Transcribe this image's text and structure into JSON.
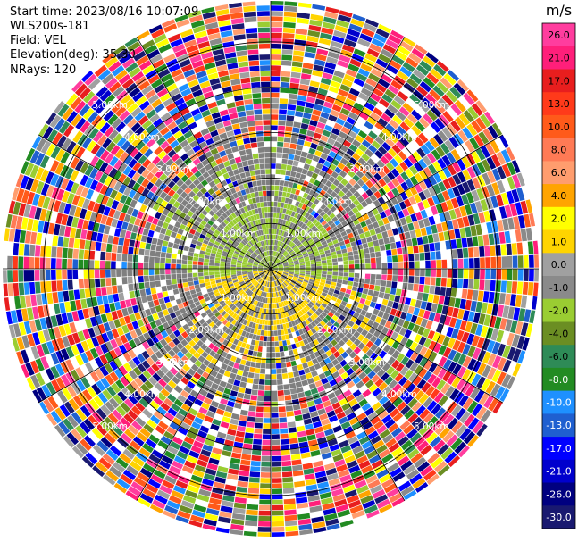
{
  "header": {
    "start_time": "Start time: 2023/08/16 10:07:09",
    "instrument": "WLS200s-181",
    "field": "Field: VEL",
    "elevation": "Elevation(deg): 35.30",
    "nrays": "NRays: 120"
  },
  "colorbar": {
    "unit": "m/s",
    "ticks": [
      "26.0",
      "21.0",
      "17.0",
      "13.0",
      "10.0",
      "8.0",
      "6.0",
      "4.0",
      "2.0",
      "1.0",
      "0.0",
      "-1.0",
      "-2.0",
      "-4.0",
      "-6.0",
      "-8.0",
      "-10.0",
      "-13.0",
      "-17.0",
      "-21.0",
      "-26.0",
      "-30.0"
    ],
    "colors": [
      "#ff3d9e",
      "#ff1f7a",
      "#e81e1e",
      "#ff3a1a",
      "#ff5a1a",
      "#ff7a55",
      "#ff9d6e",
      "#ffa400",
      "#ffff00",
      "#ffd400",
      "#a0a0a0",
      "#8a8a8a",
      "#9acd32",
      "#6b8e23",
      "#2e8b57",
      "#228b22",
      "#1e90ff",
      "#1f5fd0",
      "#0000ff",
      "#0000cd",
      "#000080",
      "#191970"
    ]
  },
  "chart_data": {
    "type": "heatmap",
    "title": "",
    "nrays": 120,
    "ring_labels": [
      "1.00km",
      "2.00km",
      "3.00km",
      "4.00km",
      "5.00km"
    ],
    "rings_km": [
      1,
      2,
      3,
      4,
      5
    ],
    "max_range_km": 5.9,
    "spokes_deg": [
      0,
      30,
      60,
      90,
      120,
      150,
      180,
      210,
      240,
      270,
      300,
      330
    ],
    "near_field": {
      "north_lobe_color": "#9acd32",
      "south_lobe_color": "#ffd700",
      "background_color": "#7f7f7f"
    }
  }
}
